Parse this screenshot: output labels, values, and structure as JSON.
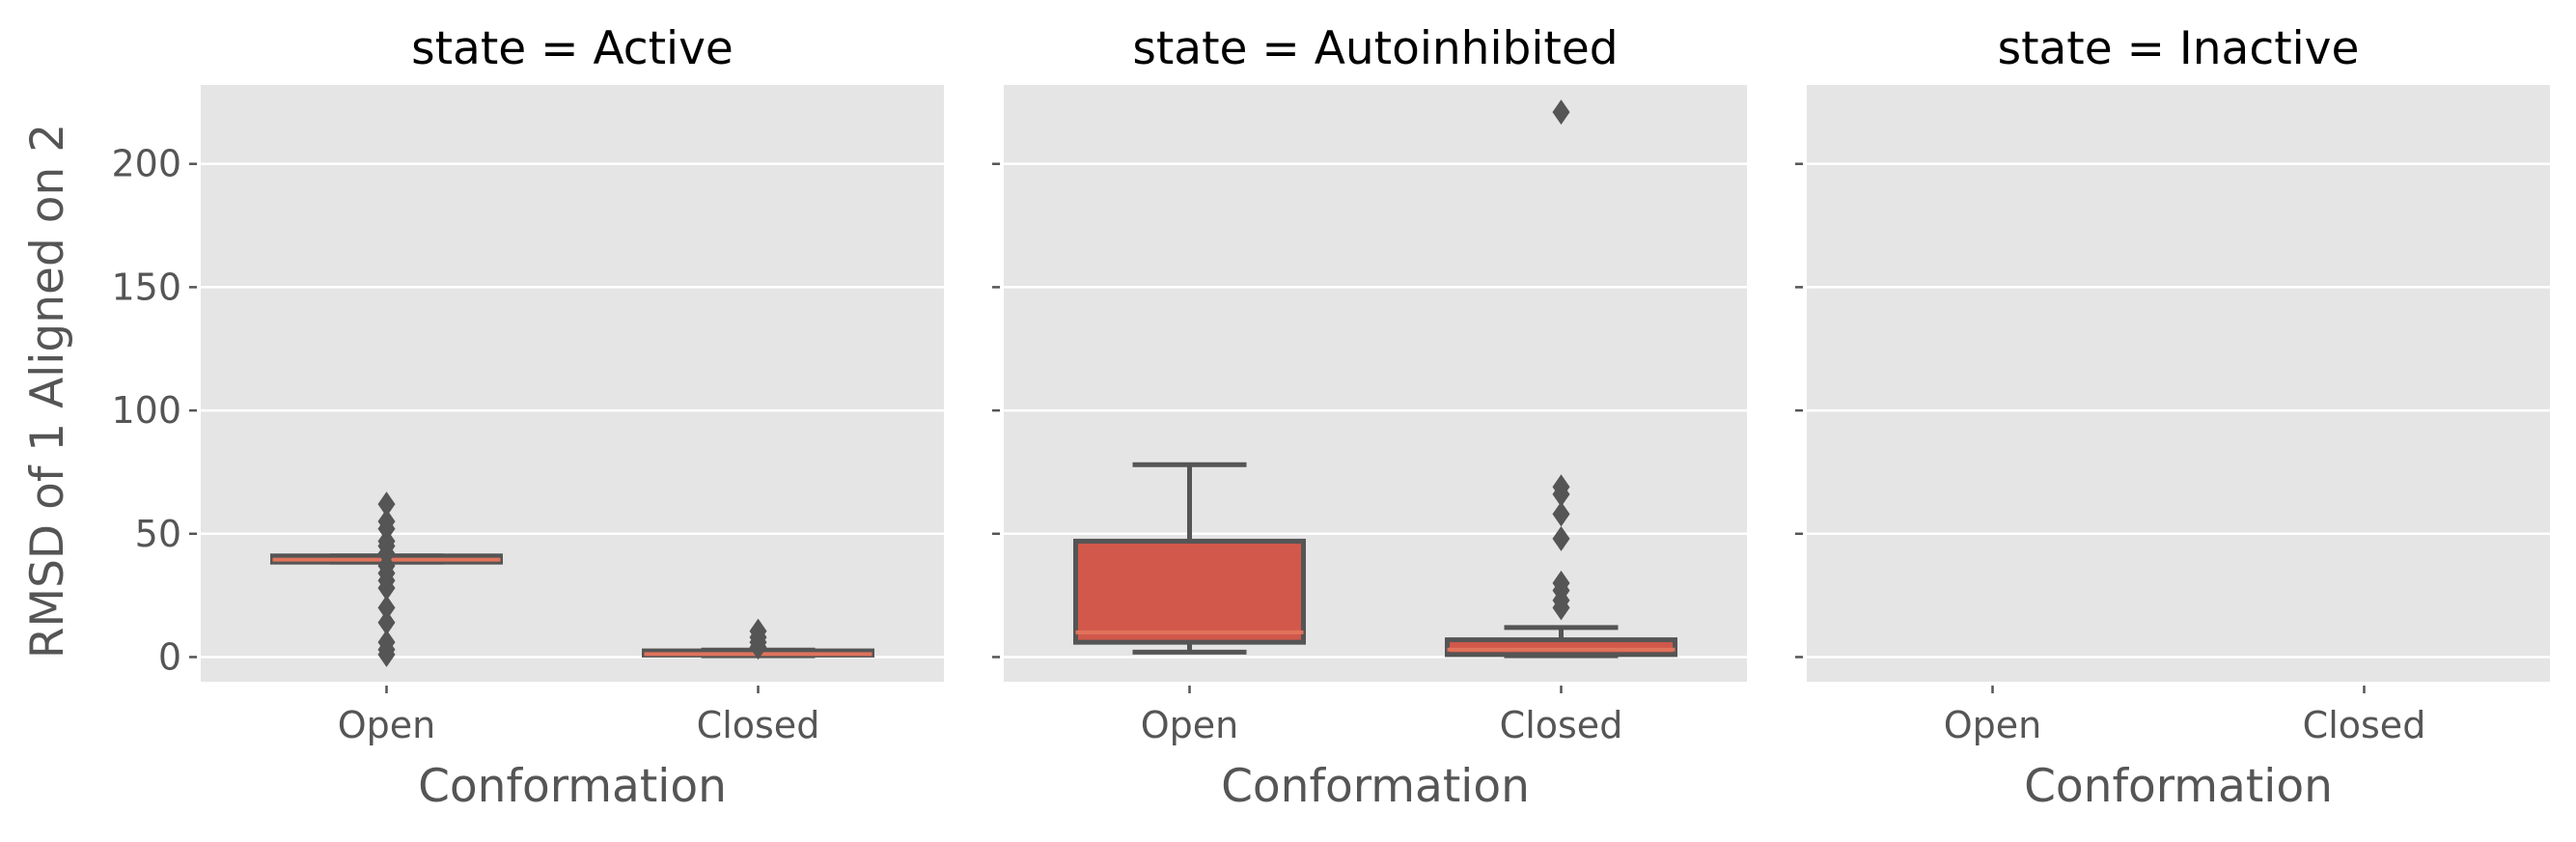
{
  "chart_data": {
    "type": "box",
    "y_label": "RMSD of 1 Aligned on 2",
    "x_label": "Conformation",
    "categories": [
      "Open",
      "Closed"
    ],
    "y_ticks": [
      0,
      50,
      100,
      150,
      200
    ],
    "y_range": [
      -10,
      232
    ],
    "grid": true,
    "box_color": "#d1584a",
    "median_color": "#e0735c",
    "line_color": "#555555",
    "background": "#e5e5e5",
    "facets": [
      {
        "title": "state = Active",
        "boxes": [
          {
            "category": "Open",
            "whisker_low": 38.5,
            "q1": 38.5,
            "median": 39.5,
            "q3": 41,
            "whisker_high": 41,
            "outliers": [
              62,
              55,
              52,
              47,
              45,
              42,
              37,
              34,
              31,
              28,
              20,
              14,
              6,
              3,
              1
            ]
          },
          {
            "category": "Closed",
            "whisker_low": 0.5,
            "q1": 0.8,
            "median": 1.2,
            "q3": 2.5,
            "whisker_high": 2.8,
            "outliers": [
              10.5,
              8,
              6,
              4
            ]
          }
        ]
      },
      {
        "title": "state = Autoinhibited",
        "boxes": [
          {
            "category": "Open",
            "whisker_low": 2,
            "q1": 6,
            "median": 10,
            "q3": 47,
            "whisker_high": 78,
            "outliers": []
          },
          {
            "category": "Closed",
            "whisker_low": 0.5,
            "q1": 1,
            "median": 3,
            "q3": 7,
            "whisker_high": 12,
            "outliers": [
              221,
              69,
              66,
              58,
              48,
              30,
              27,
              23,
              20
            ]
          }
        ]
      },
      {
        "title": "state = Inactive",
        "boxes": []
      }
    ]
  }
}
